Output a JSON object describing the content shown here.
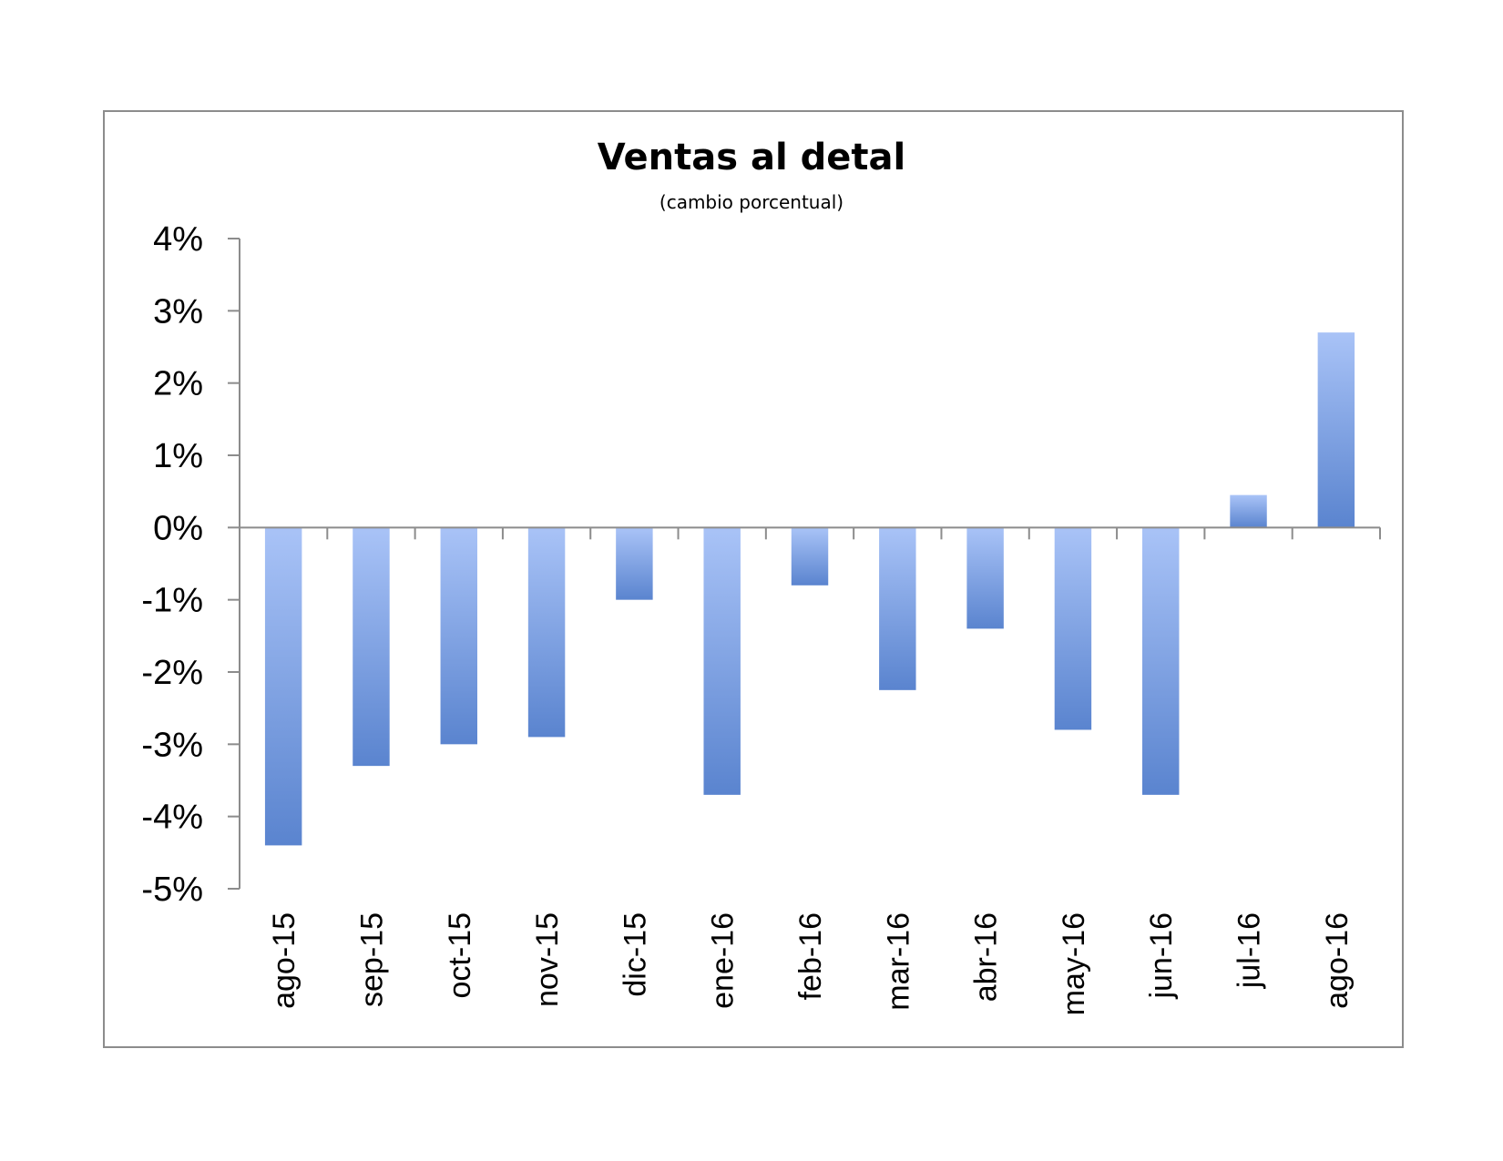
{
  "chart_data": {
    "type": "bar",
    "title": "Ventas al detal",
    "subtitle": "(cambio porcentual)",
    "xlabel": "",
    "ylabel": "",
    "categories": [
      "ago-15",
      "sep-15",
      "oct-15",
      "nov-15",
      "dic-15",
      "ene-16",
      "feb-16",
      "mar-16",
      "abr-16",
      "may-16",
      "jun-16",
      "jul-16",
      "ago-16"
    ],
    "values": [
      -4.4,
      -3.3,
      -3.0,
      -2.9,
      -1.0,
      -3.7,
      -0.8,
      -2.25,
      -1.4,
      -2.8,
      -3.7,
      0.45,
      2.7
    ],
    "ylim": [
      -5,
      4
    ],
    "yticks": [
      4,
      3,
      2,
      1,
      0,
      -1,
      -2,
      -3,
      -4,
      -5
    ],
    "ytick_labels": [
      "4%",
      "3%",
      "2%",
      "1%",
      "0%",
      "-1%",
      "-2%",
      "-3%",
      "-4%",
      "-5%"
    ],
    "grid": false,
    "legend": "none",
    "colors": {
      "bar_light": "#a9c3f7",
      "bar_dark": "#5a84cf",
      "axis": "#8c8c8c"
    }
  }
}
